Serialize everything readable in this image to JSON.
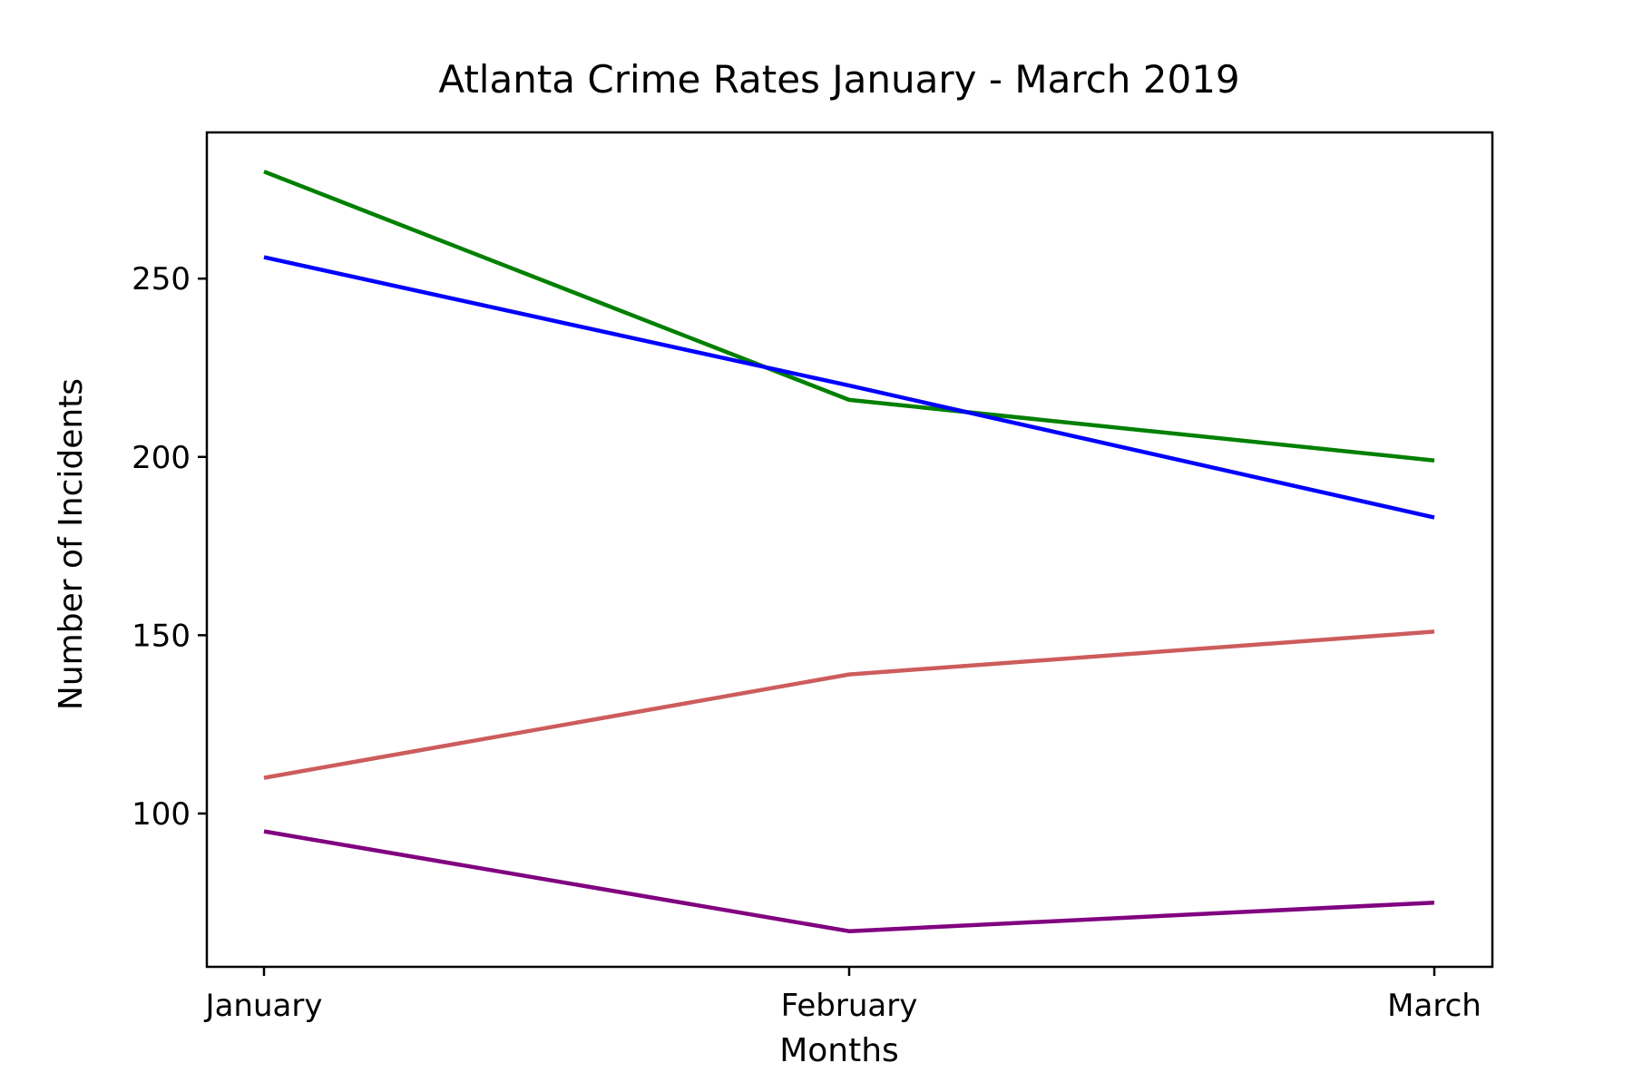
{
  "chart_data": {
    "type": "line",
    "title": "Atlanta Crime Rates January - March 2019",
    "xlabel": "Months",
    "ylabel": "Number of Incidents",
    "categories": [
      "January",
      "February",
      "March"
    ],
    "ylim": [
      57,
      291
    ],
    "yticks": [
      100,
      150,
      200,
      250
    ],
    "grid": false,
    "series": [
      {
        "color": "#008000",
        "values": [
          280,
          216,
          199
        ]
      },
      {
        "color": "#0000ff",
        "values": [
          256,
          220,
          183
        ]
      },
      {
        "color": "#cd5c5c",
        "values": [
          110,
          139,
          151
        ]
      },
      {
        "color": "#800080",
        "values": [
          95,
          67,
          75
        ]
      }
    ]
  }
}
